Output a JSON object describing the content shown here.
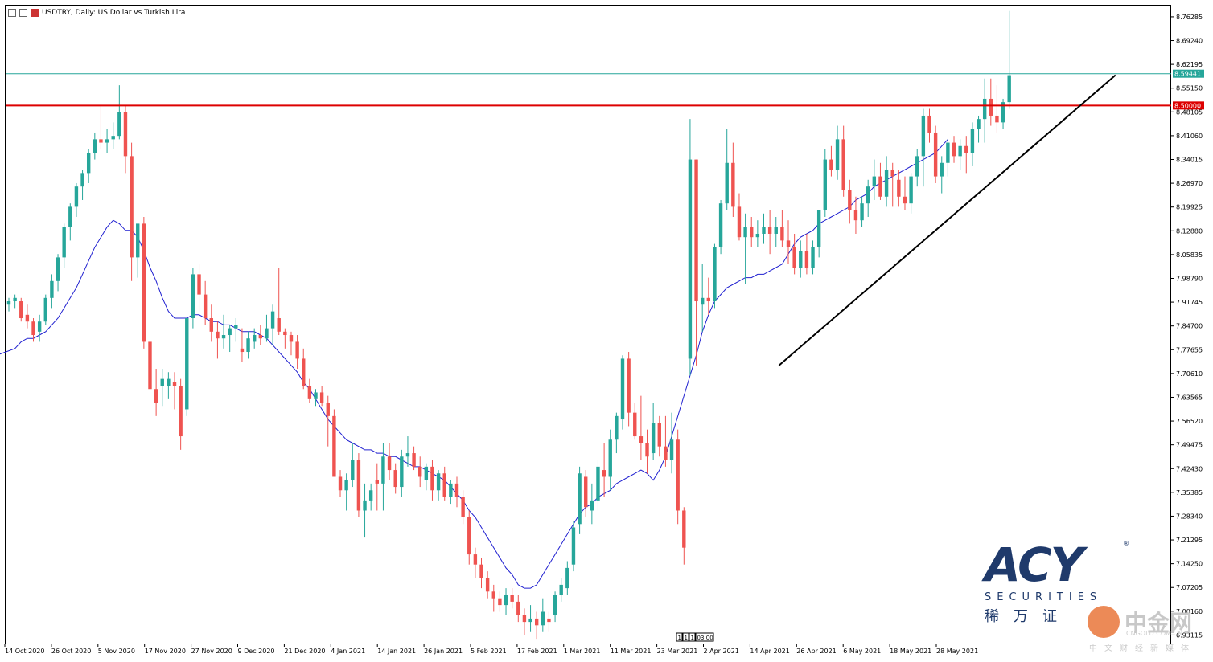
{
  "title_bar": {
    "title": "USDTRY, Daily:  US Dollar vs Turkish Lira"
  },
  "chart_data": {
    "type": "candlestick",
    "symbol": "USDTRY",
    "timeframe": "Daily",
    "ylim": [
      6.906,
      8.796
    ],
    "y_ticks": [
      "8.76285",
      "8.69240",
      "8.62195",
      "8.55150",
      "8.48105",
      "8.41060",
      "8.34015",
      "8.26970",
      "8.19925",
      "8.12880",
      "8.05835",
      "7.98790",
      "7.91745",
      "7.84700",
      "7.77655",
      "7.70610",
      "7.63565",
      "7.56520",
      "7.49475",
      "7.42430",
      "7.35385",
      "7.28340",
      "7.21295",
      "7.14250",
      "7.07205",
      "7.00160",
      "6.93115"
    ],
    "x_labels": [
      "14 Oct 2020",
      "26 Oct 2020",
      "5 Nov 2020",
      "17 Nov 2020",
      "27 Nov 2020",
      "9 Dec 2020",
      "21 Dec 2020",
      "4 Jan 2021",
      "14 Jan 2021",
      "26 Jan 2021",
      "5 Feb 2021",
      "17 Feb 2021",
      "1 Mar 2021",
      "11 Mar 2021",
      "23 Mar 2021",
      "2 Apr 2021",
      "14 Apr 2021",
      "26 Apr 2021",
      "6 May 2021",
      "18 May 2021",
      "28 May 2021"
    ],
    "price_label": "8.59441",
    "level_label": "8.50000",
    "current_price": 8.5944,
    "horizontal_level": 8.5,
    "period_marker": [
      "1",
      "1",
      "1",
      "03:00"
    ],
    "colors": {
      "bull": "#26a69a",
      "bear": "#ef5350",
      "ma": "#2020d0",
      "level_line": "#dd0000",
      "price_line": "#26a69a",
      "trendline": "#000000"
    },
    "trendline": {
      "from": [
        126,
        7.73
      ],
      "to": [
        179,
        8.59
      ]
    },
    "candles": [
      [
        7.91,
        7.93,
        7.89,
        7.92
      ],
      [
        7.92,
        7.94,
        7.9,
        7.93
      ],
      [
        7.92,
        7.93,
        7.86,
        7.87
      ],
      [
        7.88,
        7.91,
        7.84,
        7.86
      ],
      [
        7.86,
        7.87,
        7.8,
        7.82
      ],
      [
        7.83,
        7.88,
        7.8,
        7.86
      ],
      [
        7.86,
        7.94,
        7.85,
        7.93
      ],
      [
        7.93,
        8.0,
        7.9,
        7.98
      ],
      [
        7.98,
        8.06,
        7.95,
        8.05
      ],
      [
        8.05,
        8.15,
        8.02,
        8.14
      ],
      [
        8.14,
        8.21,
        8.1,
        8.2
      ],
      [
        8.2,
        8.27,
        8.17,
        8.26
      ],
      [
        8.26,
        8.31,
        8.22,
        8.3
      ],
      [
        8.3,
        8.37,
        8.27,
        8.36
      ],
      [
        8.36,
        8.42,
        8.34,
        8.4
      ],
      [
        8.4,
        8.5,
        8.37,
        8.39
      ],
      [
        8.39,
        8.43,
        8.36,
        8.4
      ],
      [
        8.4,
        8.45,
        8.37,
        8.41
      ],
      [
        8.41,
        8.56,
        8.4,
        8.48
      ],
      [
        8.48,
        8.5,
        8.3,
        8.35
      ],
      [
        8.35,
        8.39,
        7.98,
        8.05
      ],
      [
        8.05,
        8.14,
        7.99,
        8.15
      ],
      [
        8.15,
        8.17,
        7.78,
        7.8
      ],
      [
        7.8,
        7.83,
        7.6,
        7.66
      ],
      [
        7.66,
        7.72,
        7.58,
        7.62
      ],
      [
        7.67,
        7.72,
        7.61,
        7.69
      ],
      [
        7.67,
        7.71,
        7.63,
        7.69
      ],
      [
        7.68,
        7.71,
        7.6,
        7.67
      ],
      [
        7.67,
        7.69,
        7.48,
        7.52
      ],
      [
        7.6,
        7.86,
        7.58,
        7.87
      ],
      [
        7.87,
        8.02,
        7.84,
        8.0
      ],
      [
        8.0,
        8.03,
        7.89,
        7.94
      ],
      [
        7.94,
        7.98,
        7.85,
        7.87
      ],
      [
        7.87,
        7.91,
        7.8,
        7.83
      ],
      [
        7.83,
        7.86,
        7.75,
        7.81
      ],
      [
        7.81,
        7.88,
        7.78,
        7.82
      ],
      [
        7.82,
        7.85,
        7.77,
        7.84
      ],
      [
        7.84,
        7.87,
        7.8,
        7.85
      ],
      [
        7.78,
        7.84,
        7.74,
        7.77
      ],
      [
        7.77,
        7.83,
        7.75,
        7.81
      ],
      [
        7.8,
        7.84,
        7.78,
        7.82
      ],
      [
        7.82,
        7.85,
        7.79,
        7.81
      ],
      [
        7.81,
        7.88,
        7.8,
        7.84
      ],
      [
        7.84,
        7.91,
        7.79,
        7.89
      ],
      [
        7.87,
        8.02,
        7.82,
        7.83
      ],
      [
        7.83,
        7.84,
        7.78,
        7.82
      ],
      [
        7.82,
        7.83,
        7.76,
        7.8
      ],
      [
        7.8,
        7.82,
        7.72,
        7.75
      ],
      [
        7.75,
        7.78,
        7.66,
        7.67
      ],
      [
        7.67,
        7.69,
        7.62,
        7.63
      ],
      [
        7.63,
        7.66,
        7.61,
        7.65
      ],
      [
        7.65,
        7.67,
        7.61,
        7.62
      ],
      [
        7.62,
        7.64,
        7.49,
        7.58
      ],
      [
        7.58,
        7.6,
        7.4,
        7.4
      ],
      [
        7.4,
        7.42,
        7.34,
        7.36
      ],
      [
        7.36,
        7.41,
        7.3,
        7.39
      ],
      [
        7.39,
        7.5,
        7.37,
        7.45
      ],
      [
        7.45,
        7.47,
        7.28,
        7.3
      ],
      [
        7.3,
        7.38,
        7.22,
        7.33
      ],
      [
        7.33,
        7.38,
        7.3,
        7.36
      ],
      [
        7.39,
        7.44,
        7.3,
        7.38
      ],
      [
        7.38,
        7.5,
        7.3,
        7.46
      ],
      [
        7.46,
        7.5,
        7.39,
        7.42
      ],
      [
        7.42,
        7.44,
        7.35,
        7.37
      ],
      [
        7.37,
        7.48,
        7.34,
        7.46
      ],
      [
        7.46,
        7.52,
        7.43,
        7.47
      ],
      [
        7.47,
        7.49,
        7.42,
        7.43
      ],
      [
        7.43,
        7.46,
        7.37,
        7.4
      ],
      [
        7.39,
        7.44,
        7.36,
        7.43
      ],
      [
        7.43,
        7.45,
        7.33,
        7.36
      ],
      [
        7.36,
        7.42,
        7.33,
        7.41
      ],
      [
        7.41,
        7.43,
        7.33,
        7.34
      ],
      [
        7.34,
        7.39,
        7.32,
        7.38
      ],
      [
        7.38,
        7.4,
        7.31,
        7.34
      ],
      [
        7.34,
        7.36,
        7.26,
        7.28
      ],
      [
        7.28,
        7.3,
        7.14,
        7.17
      ],
      [
        7.17,
        7.19,
        7.1,
        7.14
      ],
      [
        7.14,
        7.16,
        7.07,
        7.1
      ],
      [
        7.1,
        7.12,
        7.04,
        7.06
      ],
      [
        7.06,
        7.08,
        7.0,
        7.04
      ],
      [
        7.04,
        7.06,
        7.0,
        7.02
      ],
      [
        7.02,
        7.07,
        6.99,
        7.05
      ],
      [
        7.05,
        7.07,
        7.01,
        7.03
      ],
      [
        7.03,
        7.05,
        6.97,
        6.99
      ],
      [
        6.99,
        7.01,
        6.93,
        6.97
      ],
      [
        6.97,
        7.02,
        6.94,
        6.98
      ],
      [
        6.98,
        7.0,
        6.92,
        6.96
      ],
      [
        6.96,
        7.04,
        6.94,
        7.0
      ],
      [
        6.98,
        7.0,
        6.94,
        6.97
      ],
      [
        6.99,
        7.06,
        6.97,
        7.05
      ],
      [
        7.05,
        7.1,
        7.03,
        7.08
      ],
      [
        7.07,
        7.15,
        7.05,
        7.13
      ],
      [
        7.14,
        7.27,
        7.12,
        7.25
      ],
      [
        7.26,
        7.43,
        7.23,
        7.41
      ],
      [
        7.4,
        7.42,
        7.28,
        7.31
      ],
      [
        7.3,
        7.38,
        7.26,
        7.33
      ],
      [
        7.33,
        7.45,
        7.3,
        7.43
      ],
      [
        7.42,
        7.5,
        7.34,
        7.4
      ],
      [
        7.4,
        7.54,
        7.36,
        7.51
      ],
      [
        7.51,
        7.59,
        7.47,
        7.58
      ],
      [
        7.57,
        7.76,
        7.54,
        7.75
      ],
      [
        7.75,
        7.77,
        7.55,
        7.59
      ],
      [
        7.59,
        7.62,
        7.51,
        7.52
      ],
      [
        7.52,
        7.64,
        7.45,
        7.5
      ],
      [
        7.5,
        7.54,
        7.41,
        7.46
      ],
      [
        7.47,
        7.62,
        7.45,
        7.56
      ],
      [
        7.56,
        7.58,
        7.46,
        7.49
      ],
      [
        7.49,
        7.58,
        7.43,
        7.45
      ],
      [
        7.45,
        7.59,
        7.41,
        7.51
      ],
      [
        7.51,
        7.54,
        7.26,
        7.3
      ],
      [
        7.3,
        7.31,
        7.14,
        7.19
      ],
      [
        7.75,
        8.46,
        7.7,
        8.34
      ],
      [
        8.34,
        8.34,
        7.73,
        7.92
      ],
      [
        7.91,
        8.03,
        7.83,
        7.93
      ],
      [
        7.93,
        7.99,
        7.88,
        7.92
      ],
      [
        7.92,
        8.09,
        7.9,
        8.08
      ],
      [
        8.08,
        8.22,
        8.06,
        8.21
      ],
      [
        8.21,
        8.43,
        8.19,
        8.33
      ],
      [
        8.33,
        8.39,
        8.17,
        8.2
      ],
      [
        8.2,
        8.24,
        8.1,
        8.11
      ],
      [
        8.11,
        8.18,
        7.97,
        8.14
      ],
      [
        8.14,
        8.17,
        8.08,
        8.11
      ],
      [
        8.11,
        8.16,
        8.08,
        8.12
      ],
      [
        8.12,
        8.18,
        8.09,
        8.14
      ],
      [
        8.14,
        8.19,
        8.06,
        8.12
      ],
      [
        8.12,
        8.17,
        8.08,
        8.14
      ],
      [
        8.14,
        8.19,
        8.08,
        8.1
      ],
      [
        8.1,
        8.16,
        8.03,
        8.08
      ],
      [
        8.08,
        8.12,
        8.0,
        8.02
      ],
      [
        8.02,
        8.1,
        7.99,
        8.07
      ],
      [
        8.07,
        8.12,
        8.0,
        8.02
      ],
      [
        8.02,
        8.1,
        8.0,
        8.08
      ],
      [
        8.08,
        8.19,
        8.05,
        8.19
      ],
      [
        8.19,
        8.37,
        8.17,
        8.34
      ],
      [
        8.34,
        8.38,
        8.29,
        8.31
      ],
      [
        8.31,
        8.44,
        8.28,
        8.4
      ],
      [
        8.4,
        8.44,
        8.23,
        8.25
      ],
      [
        8.25,
        8.28,
        8.15,
        8.19
      ],
      [
        8.19,
        8.23,
        8.12,
        8.16
      ],
      [
        8.16,
        8.23,
        8.14,
        8.21
      ],
      [
        8.21,
        8.28,
        8.17,
        8.26
      ],
      [
        8.26,
        8.34,
        8.22,
        8.29
      ],
      [
        8.29,
        8.33,
        8.22,
        8.23
      ],
      [
        8.23,
        8.35,
        8.2,
        8.31
      ],
      [
        8.31,
        8.33,
        8.2,
        8.29
      ],
      [
        8.28,
        8.31,
        8.2,
        8.23
      ],
      [
        8.23,
        8.29,
        8.19,
        8.21
      ],
      [
        8.21,
        8.3,
        8.18,
        8.29
      ],
      [
        8.29,
        8.37,
        8.26,
        8.35
      ],
      [
        8.35,
        8.49,
        8.26,
        8.47
      ],
      [
        8.47,
        8.49,
        8.39,
        8.42
      ],
      [
        8.42,
        8.44,
        8.27,
        8.29
      ],
      [
        8.29,
        8.35,
        8.24,
        8.33
      ],
      [
        8.33,
        8.4,
        8.29,
        8.39
      ],
      [
        8.39,
        8.41,
        8.33,
        8.35
      ],
      [
        8.35,
        8.4,
        8.31,
        8.38
      ],
      [
        8.38,
        8.41,
        8.3,
        8.36
      ],
      [
        8.36,
        8.45,
        8.32,
        8.43
      ],
      [
        8.43,
        8.47,
        8.39,
        8.46
      ],
      [
        8.46,
        8.58,
        8.39,
        8.52
      ],
      [
        8.52,
        8.58,
        8.44,
        8.47
      ],
      [
        8.47,
        8.56,
        8.42,
        8.45
      ],
      [
        8.45,
        8.52,
        8.43,
        8.51
      ],
      [
        8.51,
        8.78,
        8.49,
        8.59
      ]
    ],
    "ma_line": [
      7.76,
      7.78,
      7.8,
      7.81,
      7.81,
      7.82,
      7.83,
      7.85,
      7.87,
      7.9,
      7.93,
      7.96,
      8.0,
      8.04,
      8.08,
      8.11,
      8.14,
      8.16,
      8.15,
      8.13,
      8.13,
      8.11,
      8.07,
      8.02,
      7.98,
      7.93,
      7.89,
      7.87,
      7.87,
      7.87,
      7.88,
      7.88,
      7.87,
      7.86,
      7.86,
      7.85,
      7.85,
      7.84,
      7.83,
      7.83,
      7.83,
      7.82,
      7.81,
      7.79,
      7.77,
      7.75,
      7.73,
      7.71,
      7.68,
      7.66,
      7.63,
      7.6,
      7.57,
      7.55,
      7.53,
      7.51,
      7.5,
      7.49,
      7.48,
      7.48,
      7.47,
      7.47,
      7.46,
      7.46,
      7.45,
      7.44,
      7.43,
      7.43,
      7.42,
      7.41,
      7.4,
      7.39,
      7.37,
      7.35,
      7.33,
      7.3,
      7.28,
      7.25,
      7.22,
      7.19,
      7.16,
      7.13,
      7.11,
      7.08,
      7.07,
      7.07,
      7.08,
      7.11,
      7.14,
      7.17,
      7.2,
      7.23,
      7.26,
      7.29,
      7.31,
      7.32,
      7.34,
      7.35,
      7.36,
      7.38,
      7.39,
      7.4,
      7.41,
      7.42,
      7.41,
      7.39,
      7.42,
      7.46,
      7.52,
      7.58,
      7.64,
      7.7,
      7.76,
      7.83,
      7.88,
      7.92,
      7.94,
      7.96,
      7.97,
      7.98,
      7.99,
      7.99,
      8.0,
      8.0,
      8.01,
      8.02,
      8.03,
      8.06,
      8.09,
      8.11,
      8.12,
      8.13,
      8.15,
      8.16,
      8.17,
      8.18,
      8.19,
      8.2,
      8.22,
      8.23,
      8.24,
      8.26,
      8.27,
      8.28,
      8.29,
      8.3,
      8.31,
      8.32,
      8.33,
      8.34,
      8.35,
      8.36,
      8.38,
      8.4
    ]
  }
}
